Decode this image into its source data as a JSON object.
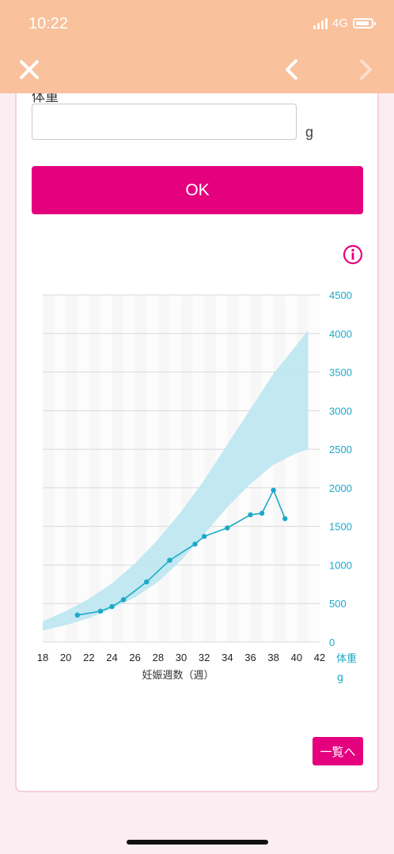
{
  "status_bar": {
    "time": "10:22",
    "network": "4G"
  },
  "header": {
    "close_icon": "close-icon",
    "prev_icon": "chevron-left-icon",
    "next_icon": "chevron-right-icon"
  },
  "form": {
    "weight_label": "体重",
    "weight_value": "",
    "weight_unit": "g",
    "ok_label": "OK"
  },
  "list_button_label": "一覧へ",
  "colors": {
    "accent": "#e5007e",
    "header": "#f9c19c",
    "series": "#1ba9c8",
    "band": "#bfe7f0"
  },
  "chart_data": {
    "type": "line",
    "x_ticks": [
      "18",
      "20",
      "22",
      "24",
      "26",
      "28",
      "30",
      "32",
      "34",
      "36",
      "38",
      "40",
      "42"
    ],
    "y_ticks": [
      "0",
      "500",
      "1000",
      "1500",
      "2000",
      "2500",
      "3000",
      "3500",
      "4000",
      "4500"
    ],
    "xlabel": "妊娠週数（週）",
    "ylabel": "体重",
    "yunit": "g",
    "xlim": [
      18,
      42
    ],
    "ylim": [
      0,
      4500
    ],
    "series": [
      {
        "x": [
          21,
          23,
          24,
          25,
          27,
          29,
          31.2,
          32,
          34,
          36,
          37,
          38,
          39
        ],
        "y": [
          350,
          400,
          460,
          550,
          780,
          1060,
          1270,
          1370,
          1480,
          1650,
          1670,
          1970,
          1600
        ]
      }
    ],
    "band": {
      "x": [
        18,
        20,
        22,
        24,
        26,
        28,
        30,
        32,
        34,
        36,
        38,
        40,
        41
      ],
      "lower": [
        150,
        220,
        310,
        430,
        580,
        780,
        1060,
        1400,
        1750,
        2050,
        2300,
        2450,
        2500
      ],
      "upper": [
        270,
        400,
        560,
        760,
        1020,
        1330,
        1690,
        2100,
        2560,
        3020,
        3480,
        3850,
        4040
      ]
    }
  }
}
